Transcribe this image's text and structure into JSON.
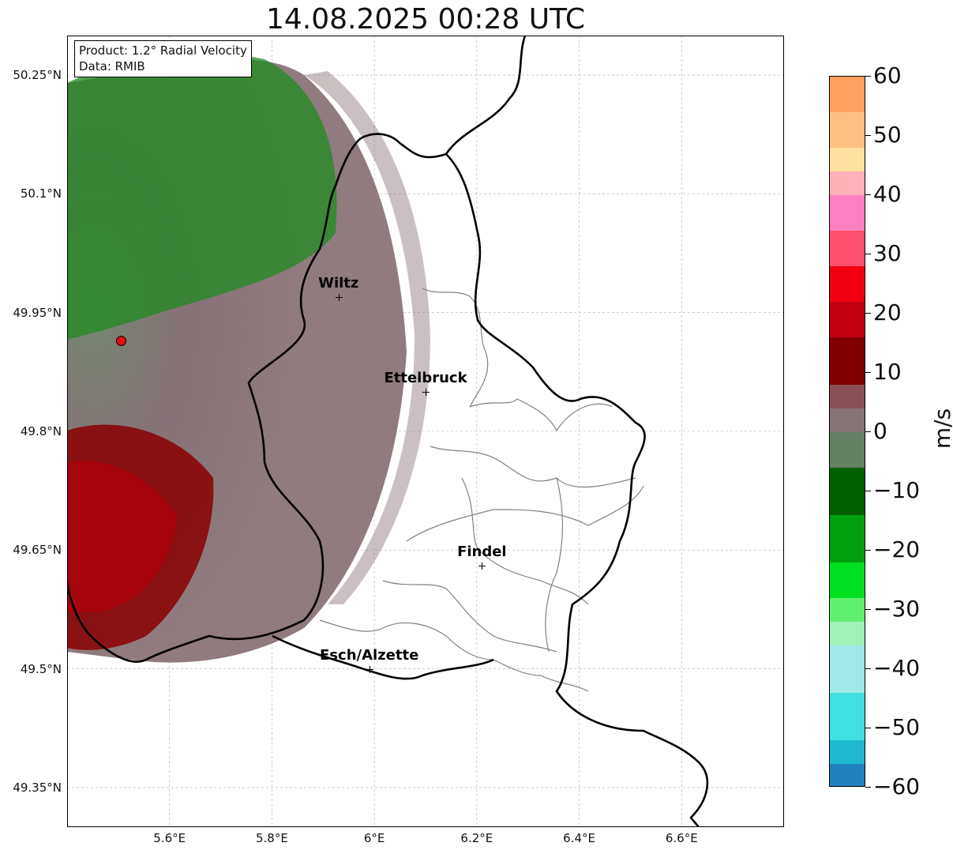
{
  "title": "14.08.2025 00:28 UTC",
  "info_box": {
    "product": "Product: 1.2° Radial Velocity",
    "data": "Data: RMIB"
  },
  "axes": {
    "lat_labels": [
      "50.25°N",
      "50.1°N",
      "49.95°N",
      "49.8°N",
      "49.65°N",
      "49.5°N",
      "49.35°N"
    ],
    "lon_labels": [
      "5.6°E",
      "5.8°E",
      "6°E",
      "6.2°E",
      "6.4°E",
      "6.6°E"
    ],
    "lat_values": [
      50.25,
      50.1,
      49.95,
      49.8,
      49.65,
      49.5,
      49.35
    ],
    "lon_values": [
      5.6,
      5.8,
      6.0,
      6.2,
      6.4,
      6.6
    ],
    "lon_range": [
      5.4,
      6.8
    ],
    "lat_range": [
      49.3,
      50.3
    ]
  },
  "cities": [
    {
      "name": "Wiltz",
      "lon": 5.93,
      "lat": 49.97
    },
    {
      "name": "Ettelbruck",
      "lon": 6.1,
      "lat": 49.85
    },
    {
      "name": "Findel",
      "lon": 6.21,
      "lat": 49.63
    },
    {
      "name": "Esch/Alzette",
      "lon": 5.99,
      "lat": 49.5
    }
  ],
  "radar_site": {
    "lon": 5.505,
    "lat": 49.915
  },
  "colorbar": {
    "unit": "m/s",
    "min": -60,
    "max": 60,
    "tick_labels": [
      "60",
      "50",
      "40",
      "30",
      "20",
      "10",
      "0",
      "−10",
      "−20",
      "−30",
      "−40",
      "−50",
      "−60"
    ],
    "tick_values": [
      60,
      50,
      40,
      30,
      20,
      10,
      0,
      -10,
      -20,
      -30,
      -40,
      -50,
      -60
    ],
    "stops": [
      {
        "from": 54,
        "to": 60,
        "color": "#ffa060"
      },
      {
        "from": 48,
        "to": 54,
        "color": "#ffc080"
      },
      {
        "from": 44,
        "to": 48,
        "color": "#ffe0a0"
      },
      {
        "from": 40,
        "to": 44,
        "color": "#ffb0b8"
      },
      {
        "from": 34,
        "to": 40,
        "color": "#ff80c0"
      },
      {
        "from": 28,
        "to": 34,
        "color": "#ff5070"
      },
      {
        "from": 22,
        "to": 28,
        "color": "#f00010"
      },
      {
        "from": 16,
        "to": 22,
        "color": "#c00010"
      },
      {
        "from": 8,
        "to": 16,
        "color": "#800000"
      },
      {
        "from": 4,
        "to": 8,
        "color": "#8a5058"
      },
      {
        "from": 0,
        "to": 4,
        "color": "#857578"
      },
      {
        "from": -6,
        "to": 0,
        "color": "#668066"
      },
      {
        "from": -14,
        "to": -6,
        "color": "#006000"
      },
      {
        "from": -22,
        "to": -14,
        "color": "#00a010"
      },
      {
        "from": -28,
        "to": -22,
        "color": "#00e020"
      },
      {
        "from": -32,
        "to": -28,
        "color": "#60f070"
      },
      {
        "from": -36,
        "to": -32,
        "color": "#a0f0b8"
      },
      {
        "from": -44,
        "to": -36,
        "color": "#a0e8e8"
      },
      {
        "from": -52,
        "to": -44,
        "color": "#40e0e0"
      },
      {
        "from": -56,
        "to": -52,
        "color": "#20b8d0"
      },
      {
        "from": -60,
        "to": -56,
        "color": "#2080c0"
      }
    ]
  },
  "colors": {
    "country_border": "#000000",
    "canton_border": "#808080",
    "grid": "#b0b0b0",
    "radar_site": "#e01010"
  }
}
